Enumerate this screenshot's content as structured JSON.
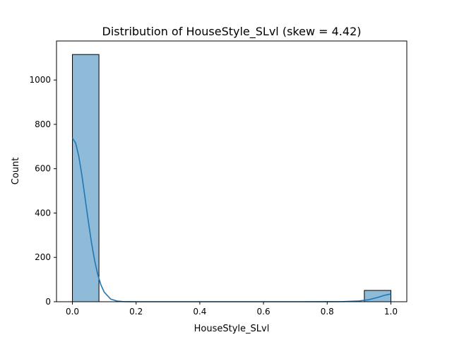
{
  "chart_data": {
    "type": "bar",
    "subtype": "histogram-with-kde",
    "title": "Distribution of HouseStyle_SLvl (skew = 4.42)",
    "xlabel": "HouseStyle_SLvl",
    "ylabel": "Count",
    "xlim": [
      -0.05,
      1.05
    ],
    "ylim": [
      0,
      1176
    ],
    "xticks": [
      0.0,
      0.2,
      0.4,
      0.6,
      0.8,
      1.0
    ],
    "xtick_labels": [
      "0.0",
      "0.2",
      "0.4",
      "0.6",
      "0.8",
      "1.0"
    ],
    "yticks": [
      0,
      200,
      400,
      600,
      800,
      1000
    ],
    "ytick_labels": [
      "0",
      "200",
      "400",
      "600",
      "800",
      "1000"
    ],
    "bins": [
      {
        "x0": 0.0,
        "x1": 0.0833,
        "count": 1115
      },
      {
        "x0": 0.9167,
        "x1": 1.0,
        "count": 51
      }
    ],
    "kde": {
      "x": [
        0.0,
        0.01,
        0.02,
        0.03,
        0.04,
        0.05,
        0.06,
        0.07,
        0.08,
        0.09,
        0.1,
        0.12,
        0.14,
        0.16,
        0.18,
        0.2,
        0.3,
        0.5,
        0.7,
        0.8,
        0.85,
        0.9,
        0.93,
        0.96,
        0.98,
        1.0
      ],
      "y": [
        738,
        716,
        656,
        568,
        465,
        362,
        265,
        184,
        120,
        74,
        43,
        12,
        3,
        0.5,
        0.1,
        0,
        0,
        0,
        0,
        0.1,
        0.7,
        3.5,
        9,
        20,
        29,
        35
      ]
    },
    "grid": false,
    "legend": "none",
    "colors": {
      "bar_fill": "#1f77b4",
      "bar_fill_opacity": 0.5,
      "bar_edge": "#000000",
      "kde_line": "#1f77b4"
    }
  }
}
